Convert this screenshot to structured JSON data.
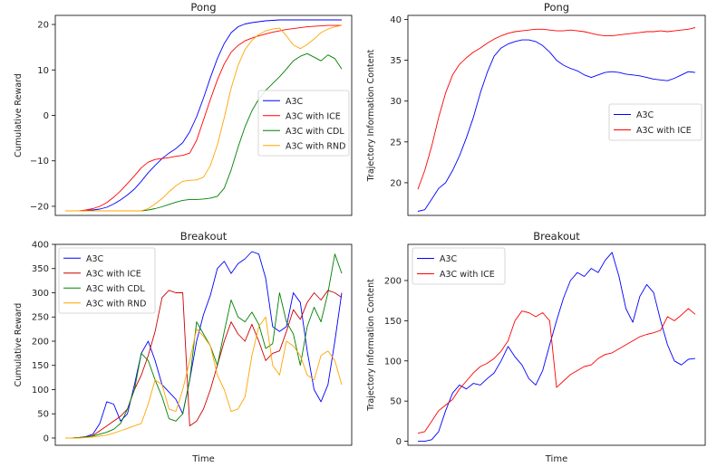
{
  "chart_data": [
    {
      "type": "line",
      "title": "Pong",
      "xlabel": "",
      "ylabel": "Cumulative Reward",
      "ylim": [
        -22,
        22
      ],
      "yticks": [
        -20,
        -10,
        0,
        10,
        20
      ],
      "legend_position": "center-right",
      "series": [
        {
          "name": "A3C",
          "color": "#0000ff",
          "values": [
            -21,
            -21,
            -21,
            -20.9,
            -20.8,
            -20.6,
            -20.2,
            -19.5,
            -18.6,
            -17.5,
            -16.2,
            -14.5,
            -12.6,
            -11,
            -9.5,
            -8.3,
            -7.3,
            -6,
            -3.6,
            -0.3,
            3.8,
            8.3,
            12.5,
            15.8,
            18.2,
            19.5,
            20.1,
            20.4,
            20.6,
            20.8,
            20.9,
            21,
            21,
            21,
            21,
            21,
            21,
            21,
            21,
            21,
            21
          ]
        },
        {
          "name": "A3C with ICE",
          "color": "#ff0000",
          "values": [
            -21,
            -21,
            -21,
            -20.8,
            -20.5,
            -20,
            -19.2,
            -18,
            -16.6,
            -15,
            -13.3,
            -11.5,
            -10.3,
            -9.7,
            -9.5,
            -9.3,
            -9,
            -8.8,
            -8.3,
            -5.5,
            -1,
            3.5,
            7.8,
            11.3,
            13.9,
            15.4,
            16.4,
            17,
            17.5,
            17.9,
            18.3,
            18.6,
            18.9,
            19.1,
            19.3,
            19.5,
            19.6,
            19.7,
            19.8,
            19.8,
            19.8
          ]
        },
        {
          "name": "A3C with CDL",
          "color": "#008000",
          "values": [
            -21,
            -21,
            -21,
            -21,
            -21,
            -21,
            -21,
            -21,
            -21,
            -21,
            -21,
            -21,
            -20.8,
            -20.5,
            -20.1,
            -19.6,
            -19.1,
            -18.7,
            -18.5,
            -18.5,
            -18.4,
            -18.2,
            -17.8,
            -16,
            -12,
            -7,
            -2.5,
            1,
            3.6,
            5.5,
            7,
            8.5,
            10.2,
            12,
            13,
            13.6,
            12.8,
            12,
            13.3,
            12.5,
            10.2
          ]
        },
        {
          "name": "A3C with RND",
          "color": "#ffa500",
          "values": [
            -21,
            -21,
            -21,
            -21,
            -21,
            -21,
            -21,
            -21,
            -21,
            -21,
            -21,
            -21,
            -20.5,
            -19.5,
            -18.3,
            -16.8,
            -15.5,
            -14.5,
            -14.3,
            -14.2,
            -13.6,
            -11,
            -6.5,
            -0.5,
            6,
            11,
            14.5,
            16.5,
            17.8,
            18.6,
            19,
            19.2,
            17.5,
            15.5,
            14.7,
            15.6,
            16.8,
            18.2,
            19,
            19.5,
            19.8
          ]
        }
      ]
    },
    {
      "type": "line",
      "title": "Pong",
      "xlabel": "",
      "ylabel": "Trajectory Information Content",
      "ylim": [
        16,
        40.5
      ],
      "yticks": [
        20,
        25,
        30,
        35,
        40
      ],
      "legend_position": "center-right",
      "series": [
        {
          "name": "A3C",
          "color": "#0000ff",
          "values": [
            16.5,
            16.7,
            18,
            19.3,
            20,
            21.5,
            23.3,
            25.5,
            28,
            31,
            33.5,
            35.5,
            36.5,
            37,
            37.3,
            37.5,
            37.5,
            37.3,
            36.8,
            36,
            35,
            34.4,
            34,
            33.7,
            33.2,
            32.9,
            33.2,
            33.5,
            33.6,
            33.5,
            33.3,
            33.2,
            33.1,
            32.9,
            32.7,
            32.6,
            32.5,
            32.8,
            33.2,
            33.6,
            33.5
          ]
        },
        {
          "name": "A3C with ICE",
          "color": "#ff0000",
          "values": [
            19.2,
            21.5,
            24.5,
            28,
            31,
            33.2,
            34.5,
            35.3,
            36,
            36.5,
            37.1,
            37.6,
            38,
            38.3,
            38.5,
            38.6,
            38.7,
            38.8,
            38.8,
            38.7,
            38.6,
            38.6,
            38.7,
            38.6,
            38.5,
            38.3,
            38.1,
            38,
            38,
            38.1,
            38.2,
            38.3,
            38.4,
            38.5,
            38.5,
            38.6,
            38.5,
            38.6,
            38.7,
            38.8,
            39
          ]
        }
      ]
    },
    {
      "type": "line",
      "title": "Breakout",
      "xlabel": "Time",
      "ylabel": "Cumulative Reward",
      "ylim": [
        -15,
        400
      ],
      "yticks": [
        0,
        50,
        100,
        150,
        200,
        250,
        300,
        350,
        400
      ],
      "legend_position": "top-left",
      "series": [
        {
          "name": "A3C",
          "color": "#0000ff",
          "values": [
            0,
            0,
            1,
            3,
            8,
            30,
            75,
            70,
            35,
            50,
            110,
            175,
            200,
            160,
            110,
            95,
            80,
            50,
            120,
            200,
            255,
            295,
            350,
            365,
            340,
            360,
            370,
            385,
            380,
            330,
            230,
            220,
            230,
            300,
            280,
            180,
            100,
            75,
            110,
            200,
            300
          ]
        },
        {
          "name": "A3C with ICE",
          "color": "#cc0000",
          "values": [
            0,
            0,
            1,
            2,
            5,
            15,
            25,
            35,
            45,
            60,
            100,
            130,
            170,
            220,
            290,
            305,
            300,
            300,
            25,
            35,
            60,
            100,
            150,
            200,
            240,
            215,
            200,
            235,
            200,
            160,
            175,
            180,
            220,
            265,
            245,
            280,
            300,
            285,
            305,
            300,
            290
          ]
        },
        {
          "name": "A3C with CDL",
          "color": "#008000",
          "values": [
            0,
            0,
            1,
            2,
            4,
            8,
            12,
            18,
            30,
            60,
            100,
            175,
            160,
            120,
            85,
            40,
            35,
            50,
            120,
            240,
            215,
            190,
            150,
            220,
            285,
            250,
            240,
            260,
            235,
            185,
            195,
            300,
            240,
            215,
            150,
            230,
            270,
            240,
            300,
            380,
            340
          ]
        },
        {
          "name": "A3C with RND",
          "color": "#ffa500",
          "values": [
            0,
            0,
            0,
            1,
            2,
            4,
            6,
            10,
            15,
            20,
            25,
            30,
            70,
            120,
            110,
            60,
            55,
            100,
            160,
            225,
            210,
            190,
            130,
            100,
            55,
            60,
            85,
            170,
            230,
            250,
            150,
            130,
            200,
            190,
            170,
            130,
            120,
            170,
            180,
            160,
            110
          ]
        }
      ]
    },
    {
      "type": "line",
      "title": "Breakout",
      "xlabel": "Time",
      "ylabel": "Trajectory Information Content",
      "ylim": [
        -5,
        245
      ],
      "yticks": [
        0,
        50,
        100,
        150,
        200
      ],
      "legend_position": "top-left",
      "series": [
        {
          "name": "A3C",
          "color": "#0000ff",
          "values": [
            0,
            0,
            2,
            12,
            38,
            60,
            70,
            65,
            72,
            70,
            78,
            85,
            100,
            118,
            105,
            95,
            78,
            70,
            88,
            120,
            150,
            178,
            200,
            210,
            205,
            215,
            210,
            225,
            235,
            205,
            165,
            148,
            180,
            195,
            185,
            150,
            120,
            100,
            95,
            102,
            103
          ]
        },
        {
          "name": "A3C with ICE",
          "color": "#ff0000",
          "values": [
            10,
            12,
            25,
            38,
            45,
            52,
            65,
            75,
            85,
            93,
            97,
            103,
            112,
            125,
            150,
            162,
            160,
            155,
            160,
            150,
            67,
            75,
            83,
            88,
            93,
            95,
            103,
            108,
            110,
            115,
            120,
            125,
            130,
            133,
            135,
            138,
            155,
            150,
            157,
            165,
            158
          ]
        }
      ]
    }
  ]
}
